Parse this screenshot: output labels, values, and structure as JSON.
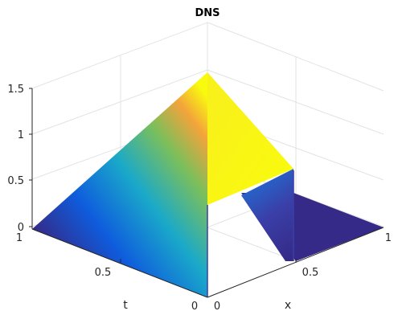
{
  "chart_data": {
    "type": "surface",
    "title": "DNS",
    "xlabel": "x",
    "ylabel": "t",
    "zlabel": "",
    "xlim": [
      0,
      1
    ],
    "tlim": [
      0,
      1
    ],
    "zlim": [
      0,
      1.5
    ],
    "x_ticks": [
      "0",
      "0.5",
      "1"
    ],
    "t_ticks": [
      "0",
      "0.5",
      "1"
    ],
    "z_ticks": [
      "0",
      "0.5",
      "1",
      "1.5"
    ],
    "grid": true,
    "colormap": "parula",
    "surface": {
      "description_values": {
        "peak": {
          "x": 0.0,
          "t": 1.0,
          "z": 1.5
        },
        "front_peak": {
          "x": 0.5,
          "t": 0.0,
          "z": 0.65
        },
        "plateau_height": 0.65,
        "base_height": 0.0
      }
    },
    "colors": {
      "dark_blue": "#352a87",
      "blue": "#0f5cdd",
      "teal": "#1aa9c9",
      "green": "#7bbf5b",
      "orange": "#f3a33b",
      "yellow": "#f9fb0e"
    }
  }
}
